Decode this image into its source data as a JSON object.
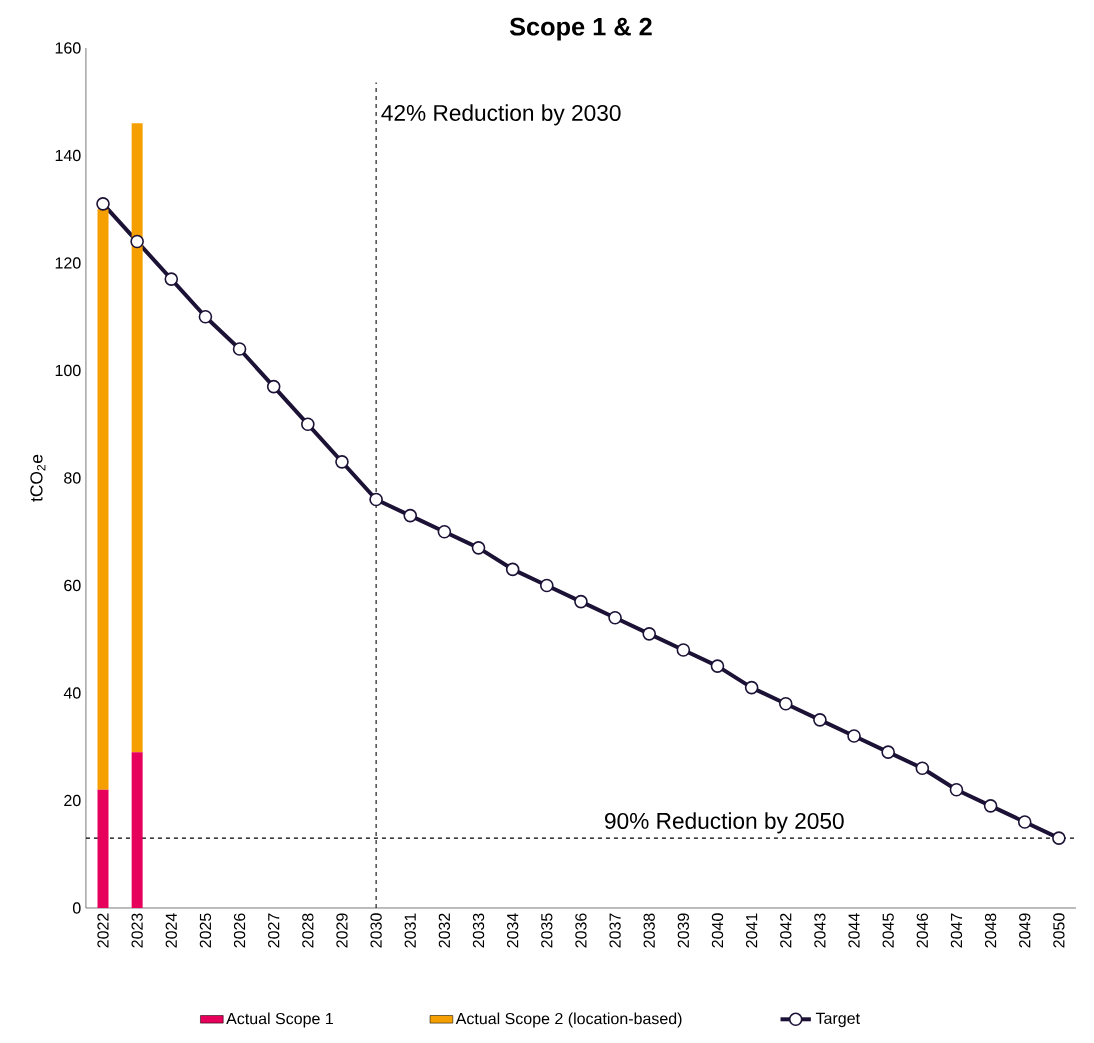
{
  "chart_data": {
    "type": "bar",
    "title": "Scope 1 & 2",
    "ylabel": "tCO$_{2}$e",
    "categories": [
      "2022",
      "2023",
      "2024",
      "2025",
      "2026",
      "2027",
      "2028",
      "2029",
      "2030",
      "2031",
      "2032",
      "2033",
      "2034",
      "2035",
      "2036",
      "2037",
      "2038",
      "2039",
      "2040",
      "2041",
      "2042",
      "2043",
      "2044",
      "2045",
      "2046",
      "2047",
      "2048",
      "2049",
      "2050"
    ],
    "stacked": true,
    "series": [
      {
        "name": "Actual Scope 1",
        "type": "bar",
        "color": "#e6005c",
        "values": [
          22,
          29,
          null,
          null,
          null,
          null,
          null,
          null,
          null,
          null,
          null,
          null,
          null,
          null,
          null,
          null,
          null,
          null,
          null,
          null,
          null,
          null,
          null,
          null,
          null,
          null,
          null,
          null,
          null
        ]
      },
      {
        "name": "Actual Scope 2 (location-based)",
        "type": "bar",
        "color": "#f5a000",
        "values": [
          108,
          117,
          null,
          null,
          null,
          null,
          null,
          null,
          null,
          null,
          null,
          null,
          null,
          null,
          null,
          null,
          null,
          null,
          null,
          null,
          null,
          null,
          null,
          null,
          null,
          null,
          null,
          null,
          null
        ]
      },
      {
        "name": "Target",
        "type": "line",
        "color": "#1c1236",
        "marker": "circle",
        "line_style": "solid",
        "values": [
          131,
          124,
          117,
          110,
          104,
          97,
          90,
          83,
          76,
          73,
          70,
          67,
          63,
          60,
          57,
          54,
          51,
          48,
          45,
          41,
          38,
          35,
          32,
          29,
          26,
          22,
          19,
          16,
          13
        ]
      }
    ],
    "ylim": [
      0,
      160
    ],
    "yticks": [
      0,
      20,
      40,
      60,
      80,
      100,
      120,
      140,
      160
    ],
    "ref_lines": [
      {
        "axis": "x",
        "value": "2030",
        "label": "42% Reduction by 2030",
        "line_style": "dashed"
      },
      {
        "axis": "y",
        "value": 13,
        "label": "90% Reduction by 2050",
        "line_style": "dashed"
      }
    ],
    "legend": "bottom",
    "grid": false
  }
}
